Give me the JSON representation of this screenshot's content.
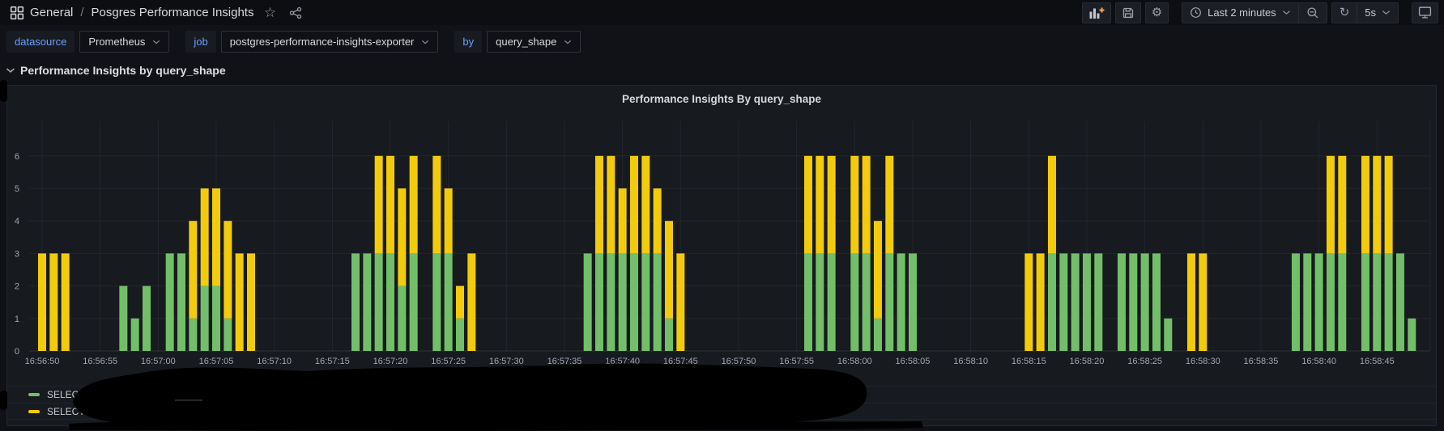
{
  "topbar": {
    "breadcrumb": {
      "section": "General",
      "separator": "/",
      "title": "Posgres Performance Insights"
    },
    "time_range": "Last 2 minutes",
    "refresh_interval": "5s",
    "icons": [
      "apps-grid",
      "star",
      "share-alt",
      "add-panel",
      "save-dashboard",
      "settings-gear",
      "clock",
      "zoom-out",
      "refresh",
      "kiosk-monitor"
    ]
  },
  "filters": [
    {
      "label": "datasource",
      "value": "Prometheus"
    },
    {
      "label": "job",
      "value": "postgres-performance-insights-exporter"
    },
    {
      "label": "by",
      "value": "query_shape"
    }
  ],
  "row": {
    "title": "Performance Insights by query_shape"
  },
  "panel": {
    "title": "Performance Insights By query_shape"
  },
  "legend": [
    {
      "label": "SELECT",
      "color": "#73bf69"
    },
    {
      "label": "SELECT",
      "color": "#f2cc0c"
    }
  ],
  "colors": {
    "green_series": "#73bf69",
    "yellow_series": "#f2cc0c",
    "accent_blue": "#6e9fff",
    "page_bg": "#111217",
    "panel_bg": "#171a1f"
  },
  "chart_data": {
    "type": "bar",
    "stacked": true,
    "title": "Performance Insights By query_shape",
    "xlabel": "",
    "ylabel": "",
    "ylim": [
      0,
      7
    ],
    "y_ticks": [
      0,
      1,
      2,
      3,
      4,
      5,
      6
    ],
    "grid": true,
    "legend_position": "bottom",
    "x_tick_interval_s": 5,
    "x_ticks": [
      "16:56:50",
      "16:56:55",
      "16:57:00",
      "16:57:05",
      "16:57:10",
      "16:57:15",
      "16:57:20",
      "16:57:25",
      "16:57:30",
      "16:57:35",
      "16:57:40",
      "16:57:45",
      "16:57:50",
      "16:57:55",
      "16:58:00",
      "16:58:05",
      "16:58:10",
      "16:58:15",
      "16:58:20",
      "16:58:25",
      "16:58:30",
      "16:58:35",
      "16:58:40",
      "16:58:45"
    ],
    "series": [
      {
        "name": "SELECT",
        "color": "#73bf69"
      },
      {
        "name": "SELECT",
        "color": "#f2cc0c"
      }
    ],
    "bars_format": "[seconds_after_16:56:50, green_value, yellow_value] (stacked)",
    "bars": [
      [
        0,
        0,
        3
      ],
      [
        1,
        0,
        3
      ],
      [
        2,
        0,
        3
      ],
      [
        7,
        2,
        0
      ],
      [
        8,
        1,
        0
      ],
      [
        9,
        2,
        0
      ],
      [
        11,
        3,
        0
      ],
      [
        12,
        3,
        0
      ],
      [
        13,
        1,
        3
      ],
      [
        14,
        2,
        3
      ],
      [
        15,
        2,
        3
      ],
      [
        16,
        1,
        3
      ],
      [
        17,
        0,
        3
      ],
      [
        18,
        0,
        3
      ],
      [
        27,
        3,
        0
      ],
      [
        28,
        3,
        0
      ],
      [
        29,
        3,
        3
      ],
      [
        30,
        3,
        3
      ],
      [
        31,
        2,
        3
      ],
      [
        32,
        3,
        3
      ],
      [
        34,
        3,
        3
      ],
      [
        35,
        3,
        2
      ],
      [
        36,
        1,
        1
      ],
      [
        37,
        0,
        3
      ],
      [
        47,
        3,
        0
      ],
      [
        48,
        3,
        3
      ],
      [
        49,
        3,
        3
      ],
      [
        50,
        3,
        2
      ],
      [
        51,
        3,
        3
      ],
      [
        52,
        3,
        3
      ],
      [
        53,
        3,
        2
      ],
      [
        54,
        1,
        3
      ],
      [
        55,
        0,
        3
      ],
      [
        66,
        3,
        3
      ],
      [
        67,
        3,
        3
      ],
      [
        68,
        3,
        3
      ],
      [
        70,
        3,
        3
      ],
      [
        71,
        3,
        3
      ],
      [
        72,
        1,
        3
      ],
      [
        73,
        3,
        3
      ],
      [
        74,
        3,
        0
      ],
      [
        75,
        3,
        0
      ],
      [
        85,
        0,
        3
      ],
      [
        86,
        0,
        3
      ],
      [
        87,
        3,
        3
      ],
      [
        88,
        3,
        0
      ],
      [
        89,
        3,
        0
      ],
      [
        90,
        3,
        0
      ],
      [
        91,
        3,
        0
      ],
      [
        93,
        3,
        0
      ],
      [
        94,
        3,
        0
      ],
      [
        95,
        3,
        0
      ],
      [
        96,
        3,
        0
      ],
      [
        97,
        1,
        0
      ],
      [
        99,
        0,
        3
      ],
      [
        100,
        0,
        3
      ],
      [
        108,
        3,
        0
      ],
      [
        109,
        3,
        0
      ],
      [
        110,
        3,
        0
      ],
      [
        111,
        3,
        3
      ],
      [
        112,
        3,
        3
      ],
      [
        114,
        3,
        3
      ],
      [
        115,
        3,
        3
      ],
      [
        116,
        3,
        3
      ],
      [
        117,
        3,
        0
      ],
      [
        118,
        1,
        0
      ]
    ]
  }
}
